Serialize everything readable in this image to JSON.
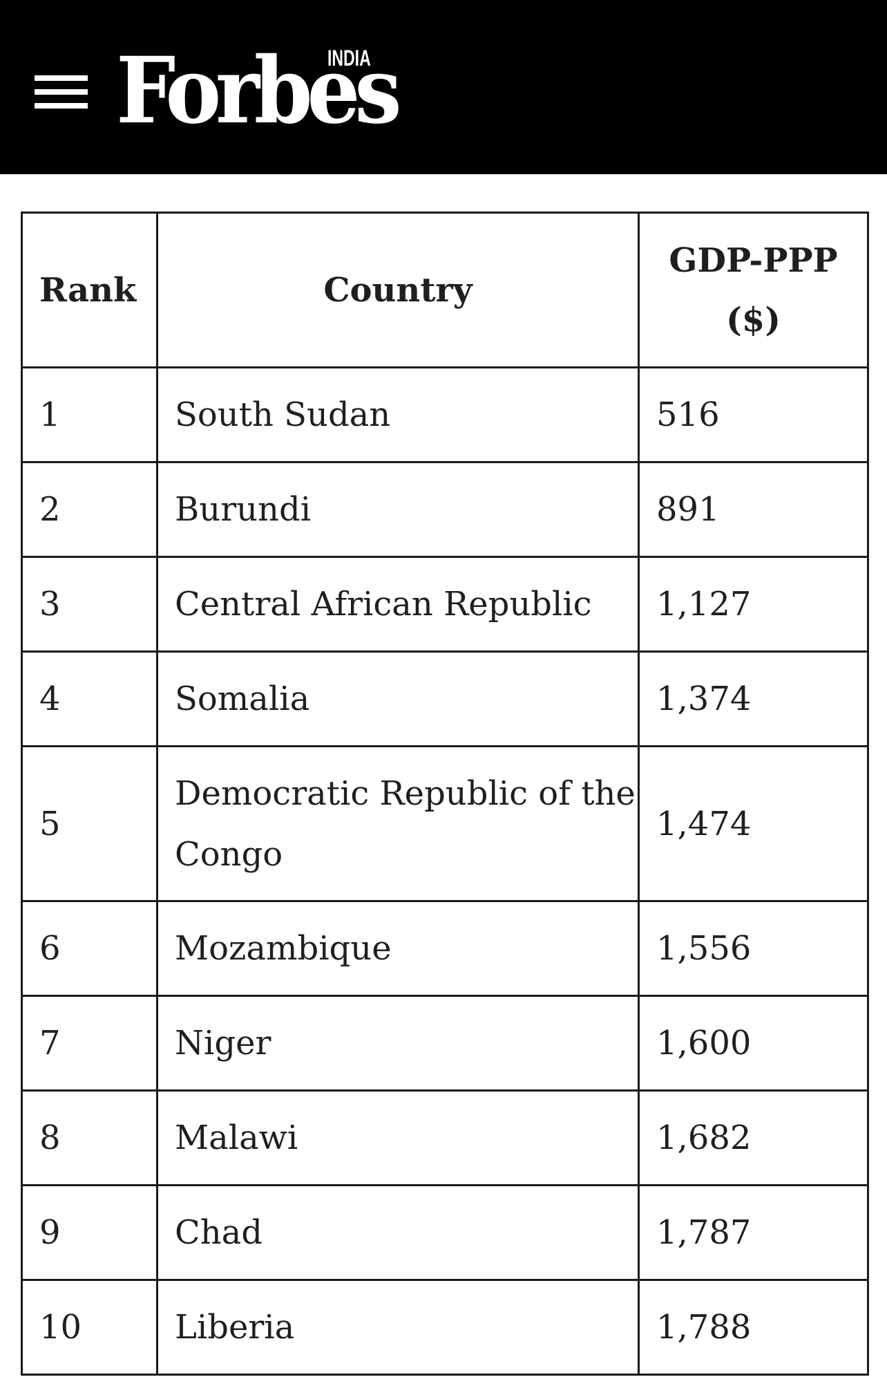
{
  "header": {
    "logo_text": "Forbes",
    "logo_edition": "INDIA",
    "menu_icon": "hamburger-menu-icon"
  },
  "table": {
    "columns": [
      "Rank",
      "Country",
      "GDP-PPP ($)"
    ],
    "rows": [
      {
        "rank": "1",
        "country": "South Sudan",
        "gdp": "516"
      },
      {
        "rank": "2",
        "country": "Burundi",
        "gdp": "891"
      },
      {
        "rank": "3",
        "country": "Central African Republic",
        "gdp": "1,127"
      },
      {
        "rank": "4",
        "country": "Somalia",
        "gdp": "1,374"
      },
      {
        "rank": "5",
        "country": "Democratic Republic of the Congo",
        "gdp": "1,474"
      },
      {
        "rank": "6",
        "country": "Mozambique",
        "gdp": "1,556"
      },
      {
        "rank": "7",
        "country": "Niger",
        "gdp": "1,600"
      },
      {
        "rank": "8",
        "country": "Malawi",
        "gdp": "1,682"
      },
      {
        "rank": "9",
        "country": "Chad",
        "gdp": "1,787"
      },
      {
        "rank": "10",
        "country": "Liberia",
        "gdp": "1,788"
      }
    ]
  }
}
